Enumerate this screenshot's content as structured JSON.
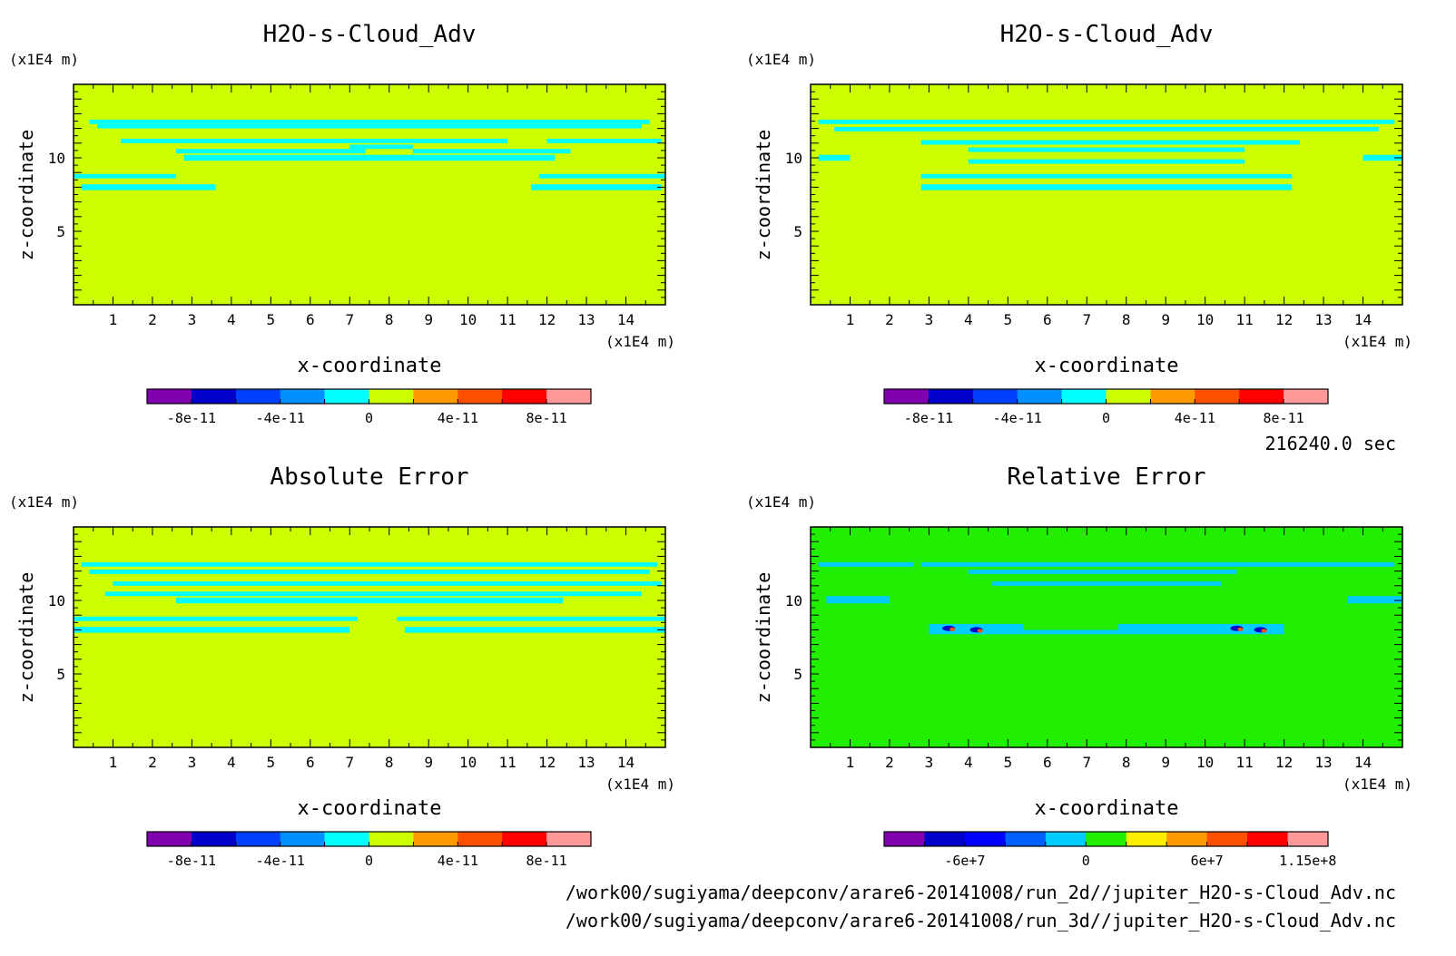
{
  "time_label": "216240.0 sec",
  "files": [
    "/work00/sugiyama/deepconv/arare6-20141008/run_2d//jupiter_H2O-s-Cloud_Adv.nc",
    "/work00/sugiyama/deepconv/arare6-20141008/run_3d//jupiter_H2O-s-Cloud_Adv.nc"
  ],
  "chart_data": [
    {
      "type": "heatmap",
      "title": "H2O-s-Cloud_Adv",
      "xlabel": "x-coordinate",
      "ylabel": "z-coordinate",
      "x_unit": "(x1E4 m)",
      "y_unit": "(x1E4 m)",
      "xlim": [
        0,
        15
      ],
      "ylim": [
        0,
        15
      ],
      "x_ticks": [
        "1",
        "2",
        "3",
        "4",
        "5",
        "6",
        "7",
        "8",
        "9",
        "10",
        "11",
        "12",
        "13",
        "14"
      ],
      "y_ticks": [
        "5",
        "10"
      ],
      "background_color": "#ccff00",
      "band_color": "#00ffff",
      "colorbar": {
        "colors": [
          "#8000b0",
          "#0000c8",
          "#0040ff",
          "#0090ff",
          "#00ffff",
          "#ccff00",
          "#ff9900",
          "#ff5000",
          "#ff0000",
          "#ff9999"
        ],
        "labels": [
          "-8e-11",
          "-4e-11",
          "0",
          "4e-11",
          "8e-11"
        ],
        "label_positions": [
          1,
          3,
          5,
          7,
          9
        ]
      },
      "bands": [
        [
          0.4,
          14.6,
          12.3,
          12.6
        ],
        [
          0.6,
          14.4,
          12.0,
          12.3
        ],
        [
          1.2,
          11.0,
          11.0,
          11.3
        ],
        [
          12.0,
          14.9,
          11.0,
          11.3
        ],
        [
          2.6,
          7.4,
          10.3,
          10.6
        ],
        [
          7.0,
          8.6,
          10.6,
          10.9
        ],
        [
          8.6,
          12.6,
          10.3,
          10.6
        ],
        [
          2.8,
          12.2,
          9.8,
          10.2
        ],
        [
          0,
          2.6,
          8.6,
          8.9
        ],
        [
          11.8,
          15,
          8.6,
          8.9
        ],
        [
          0.2,
          3.6,
          7.8,
          8.2
        ],
        [
          11.6,
          14.9,
          7.8,
          8.2
        ]
      ]
    },
    {
      "type": "heatmap",
      "title": "H2O-s-Cloud_Adv",
      "xlabel": "x-coordinate",
      "ylabel": "z-coordinate",
      "x_unit": "(x1E4 m)",
      "y_unit": "(x1E4 m)",
      "xlim": [
        0,
        15
      ],
      "ylim": [
        0,
        15
      ],
      "x_ticks": [
        "1",
        "2",
        "3",
        "4",
        "5",
        "6",
        "7",
        "8",
        "9",
        "10",
        "11",
        "12",
        "13",
        "14"
      ],
      "y_ticks": [
        "5",
        "10"
      ],
      "background_color": "#ccff00",
      "band_color": "#00ffff",
      "colorbar": {
        "colors": [
          "#8000b0",
          "#0000c8",
          "#0040ff",
          "#0090ff",
          "#00ffff",
          "#ccff00",
          "#ff9900",
          "#ff5000",
          "#ff0000",
          "#ff9999"
        ],
        "labels": [
          "-8e-11",
          "-4e-11",
          "0",
          "4e-11",
          "8e-11"
        ],
        "label_positions": [
          1,
          3,
          5,
          7,
          9
        ]
      },
      "bands": [
        [
          0.2,
          14.8,
          12.3,
          12.6
        ],
        [
          0.6,
          14.4,
          11.8,
          12.1
        ],
        [
          2.8,
          12.4,
          10.9,
          11.2
        ],
        [
          4.0,
          11.0,
          10.4,
          10.7
        ],
        [
          0.2,
          1.0,
          9.8,
          10.2
        ],
        [
          14.0,
          15.0,
          9.8,
          10.2
        ],
        [
          4.0,
          11.0,
          9.6,
          9.9
        ],
        [
          2.8,
          12.2,
          8.6,
          8.9
        ],
        [
          2.8,
          12.2,
          7.8,
          8.2
        ]
      ]
    },
    {
      "type": "heatmap",
      "title": "Absolute Error",
      "xlabel": "x-coordinate",
      "ylabel": "z-coordinate",
      "x_unit": "(x1E4 m)",
      "y_unit": "(x1E4 m)",
      "xlim": [
        0,
        15
      ],
      "ylim": [
        0,
        15
      ],
      "x_ticks": [
        "1",
        "2",
        "3",
        "4",
        "5",
        "6",
        "7",
        "8",
        "9",
        "10",
        "11",
        "12",
        "13",
        "14"
      ],
      "y_ticks": [
        "5",
        "10"
      ],
      "background_color": "#ccff00",
      "band_color": "#00ffff",
      "colorbar": {
        "colors": [
          "#8000b0",
          "#0000c8",
          "#0040ff",
          "#0090ff",
          "#00ffff",
          "#ccff00",
          "#ff9900",
          "#ff5000",
          "#ff0000",
          "#ff9999"
        ],
        "labels": [
          "-8e-11",
          "-4e-11",
          "0",
          "4e-11",
          "8e-11"
        ],
        "label_positions": [
          1,
          3,
          5,
          7,
          9
        ]
      },
      "bands": [
        [
          0.2,
          14.8,
          12.3,
          12.6
        ],
        [
          0.4,
          14.6,
          11.8,
          12.1
        ],
        [
          1.0,
          14.9,
          11.0,
          11.3
        ],
        [
          0.8,
          14.4,
          10.3,
          10.6
        ],
        [
          2.6,
          12.4,
          9.8,
          10.2
        ],
        [
          0,
          7.2,
          8.6,
          8.9
        ],
        [
          8.2,
          15,
          8.6,
          8.9
        ],
        [
          0,
          7.0,
          7.8,
          8.2
        ],
        [
          8.4,
          15,
          7.8,
          8.2
        ]
      ]
    },
    {
      "type": "heatmap",
      "title": "Relative Error",
      "xlabel": "x-coordinate",
      "ylabel": "z-coordinate",
      "x_unit": "(x1E4 m)",
      "y_unit": "(x1E4 m)",
      "xlim": [
        0,
        15
      ],
      "ylim": [
        0,
        15
      ],
      "x_ticks": [
        "1",
        "2",
        "3",
        "4",
        "5",
        "6",
        "7",
        "8",
        "9",
        "10",
        "11",
        "12",
        "13",
        "14"
      ],
      "y_ticks": [
        "5",
        "10"
      ],
      "background_color": "#22ee00",
      "band_color": "#00ccff",
      "colorbar": {
        "colors": [
          "#8000b0",
          "#0000c8",
          "#0000ff",
          "#0060ff",
          "#00ccff",
          "#22ee00",
          "#ffee00",
          "#ff9900",
          "#ff5000",
          "#ff0000",
          "#ff9999"
        ],
        "labels": [
          "-6e+7",
          "0",
          "6e+7",
          "1.15e+8"
        ],
        "label_positions": [
          2,
          5,
          8,
          10.5
        ]
      },
      "bands": [
        [
          0.2,
          2.6,
          12.3,
          12.6
        ],
        [
          2.8,
          14.8,
          12.3,
          12.6
        ],
        [
          4.0,
          10.8,
          11.8,
          12.1
        ],
        [
          4.6,
          10.4,
          11.0,
          11.3
        ],
        [
          0.4,
          2.0,
          9.8,
          10.3
        ],
        [
          13.6,
          15.0,
          9.8,
          10.3
        ],
        [
          3.0,
          5.4,
          8.0,
          8.4
        ],
        [
          7.8,
          12.0,
          8.0,
          8.4
        ],
        [
          3.0,
          12.0,
          7.7,
          8.0
        ]
      ],
      "hotspots": [
        [
          3.5,
          8.1
        ],
        [
          4.2,
          8.0
        ],
        [
          10.8,
          8.1
        ],
        [
          11.4,
          8.0
        ]
      ]
    }
  ]
}
